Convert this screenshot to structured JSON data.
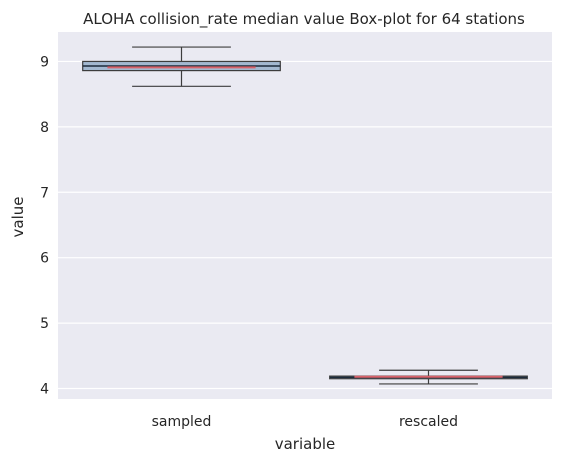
{
  "chart_data": {
    "type": "box",
    "title": "ALOHA collision_rate median value Box-plot for 64 stations",
    "xlabel": "variable",
    "ylabel": "value",
    "categories": [
      "sampled",
      "rescaled"
    ],
    "ylim": [
      3.84,
      9.45
    ],
    "yticks": [
      4,
      5,
      6,
      7,
      8,
      9
    ],
    "grid": true,
    "boxes": [
      {
        "category": "sampled",
        "whisker_low": 8.62,
        "q1": 8.86,
        "median": 8.93,
        "mean": 8.91,
        "q3": 9.0,
        "whisker_high": 9.22
      },
      {
        "category": "rescaled",
        "whisker_low": 4.07,
        "q1": 4.15,
        "median": 4.17,
        "mean": 4.18,
        "q3": 4.19,
        "whisker_high": 4.28
      }
    ]
  },
  "colors": {
    "background": "#eaeaf2",
    "grid": "#ffffff",
    "box_fill": "#a3b8d0",
    "box_edge": "#3d3d3d",
    "median_line": "#1c2a3a",
    "mean_line": "#d9636b"
  }
}
